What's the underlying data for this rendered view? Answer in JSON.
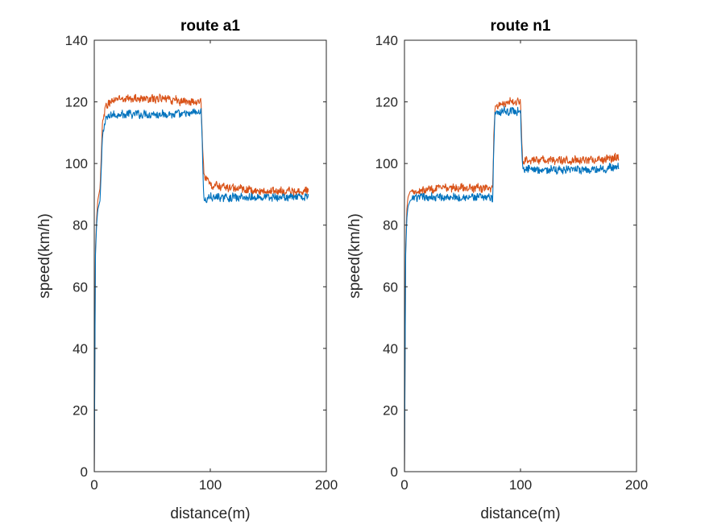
{
  "figure": {
    "colors": {
      "series1": "#0072BD",
      "series2": "#D95319",
      "axis": "#262626",
      "background": "#ffffff"
    }
  },
  "chart_data": [
    {
      "type": "line",
      "title": "route a1",
      "xlabel": "distance(m)",
      "ylabel": "speed(km/h)",
      "xlim": [
        0,
        200
      ],
      "ylim": [
        0,
        140
      ],
      "xticks": [
        0,
        100,
        200
      ],
      "yticks": [
        0,
        20,
        40,
        60,
        80,
        100,
        120,
        140
      ],
      "grid": false,
      "x_end": 185,
      "series": [
        {
          "color": "#0072BD",
          "x": [
            0,
            1,
            2,
            3,
            5,
            7,
            10,
            20,
            40,
            60,
            80,
            92,
            93,
            94,
            95,
            100,
            120,
            140,
            160,
            185
          ],
          "y": [
            0,
            70,
            80,
            85,
            88,
            108,
            115,
            116,
            116,
            116,
            116,
            117,
            108,
            92,
            88,
            89,
            89,
            89,
            89,
            89
          ]
        },
        {
          "color": "#D95319",
          "x": [
            0,
            1,
            2,
            3,
            5,
            7,
            10,
            20,
            40,
            60,
            80,
            92,
            93,
            94,
            95,
            100,
            120,
            140,
            160,
            185
          ],
          "y": [
            0,
            72,
            82,
            88,
            92,
            112,
            119,
            121,
            121,
            121,
            120,
            120,
            110,
            100,
            96,
            93,
            92,
            91,
            91,
            91
          ]
        }
      ]
    },
    {
      "type": "line",
      "title": "route n1",
      "xlabel": "distance(m)",
      "ylabel": "speed(km/h)",
      "xlim": [
        0,
        200
      ],
      "ylim": [
        0,
        140
      ],
      "xticks": [
        0,
        100,
        200
      ],
      "yticks": [
        0,
        20,
        40,
        60,
        80,
        100,
        120,
        140
      ],
      "grid": false,
      "x_end": 185,
      "series": [
        {
          "color": "#0072BD",
          "x": [
            0,
            1,
            2,
            3,
            5,
            10,
            30,
            50,
            70,
            76,
            77,
            78,
            80,
            90,
            100,
            101,
            102,
            105,
            120,
            140,
            160,
            185
          ],
          "y": [
            0,
            70,
            82,
            86,
            88,
            89,
            89,
            89,
            89,
            89,
            105,
            116,
            117,
            117,
            117,
            105,
            98,
            98,
            98,
            98,
            98,
            99
          ]
        },
        {
          "color": "#D95319",
          "x": [
            0,
            1,
            2,
            3,
            5,
            10,
            30,
            50,
            70,
            76,
            77,
            78,
            80,
            90,
            100,
            101,
            102,
            105,
            120,
            140,
            160,
            185
          ],
          "y": [
            0,
            72,
            85,
            89,
            91,
            91,
            92,
            92,
            92,
            92,
            108,
            118,
            119,
            120,
            120,
            108,
            101,
            101,
            101,
            101,
            101,
            102
          ]
        }
      ]
    }
  ]
}
